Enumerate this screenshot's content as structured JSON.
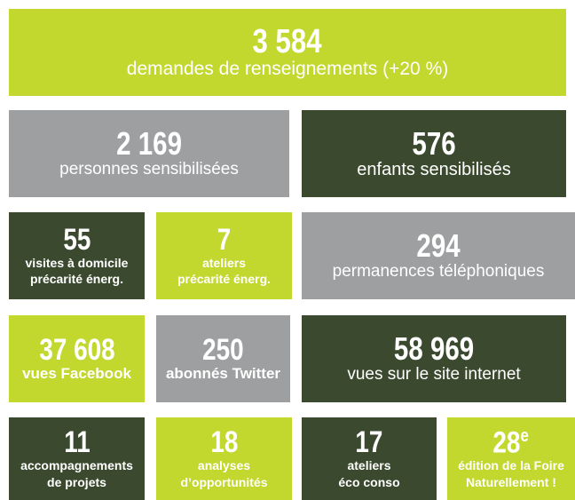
{
  "tiles": [
    {
      "number": "3 584",
      "label": [
        "demandes de renseignements (+20 %)"
      ]
    },
    {
      "number": "2 169",
      "label": [
        "personnes sensibilisées"
      ]
    },
    {
      "number": "576",
      "label": [
        "enfants sensibilisés"
      ]
    },
    {
      "number": "55",
      "label": [
        "visites à domicile",
        "précarité énerg."
      ]
    },
    {
      "number": "7",
      "label": [
        "ateliers",
        "précarité énerg."
      ]
    },
    {
      "number": "294",
      "label": [
        "permanences téléphoniques"
      ]
    },
    {
      "number": "37 608",
      "label": [
        "vues Facebook"
      ]
    },
    {
      "number": "250",
      "label": [
        "abonnés Twitter"
      ]
    },
    {
      "number": "58 969",
      "label": [
        "vues sur le site internet"
      ]
    },
    {
      "number": "11",
      "label": [
        "accompagnements",
        "de projets"
      ]
    },
    {
      "number": "18",
      "label": [
        "analyses",
        "d’opportunités"
      ]
    },
    {
      "number": "17",
      "label": [
        "ateliers",
        "éco conso"
      ]
    },
    {
      "number": "28",
      "number_sup": "e",
      "label": [
        "édition de la Foire",
        "Naturellement !"
      ]
    }
  ]
}
